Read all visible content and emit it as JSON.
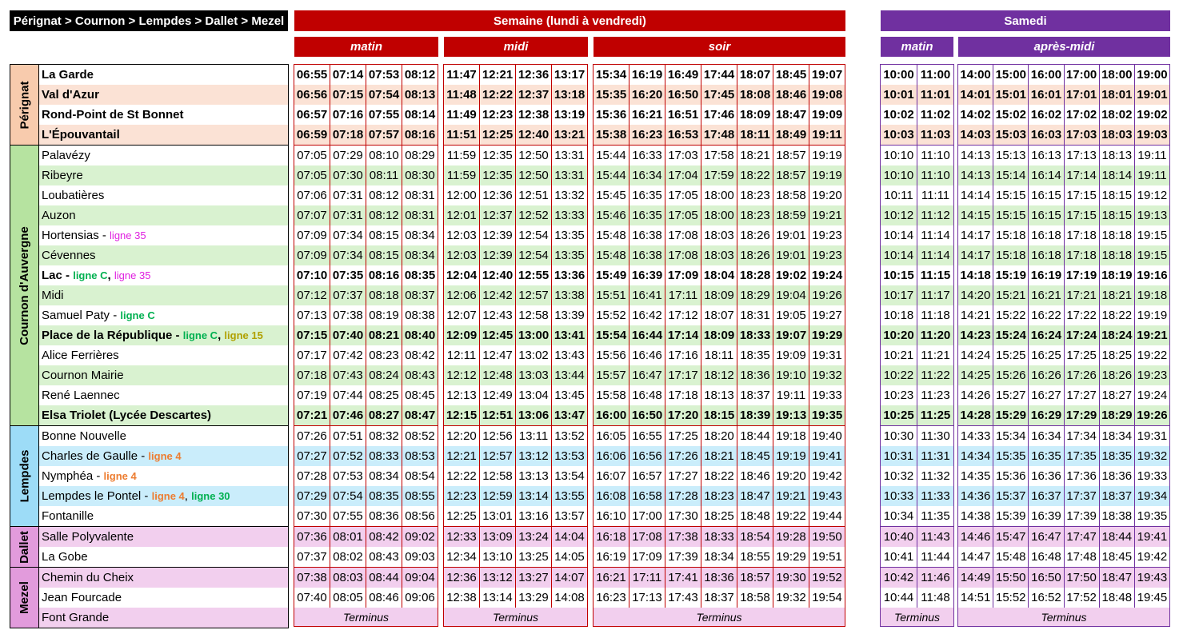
{
  "route_title": "Pérignat > Cournon > Lempdes > Dallet > Mezel",
  "colors": {
    "weekday": "#c00000",
    "saturday": "#7030a0",
    "perignat": "#f8cbad",
    "cournon": "#b6e3a0",
    "lempdes": "#9ddcf7",
    "dallet": "#e29bdc",
    "mezel": "#e29bdc",
    "ligne_C": "#00b050",
    "ligne_35": "#e020e0",
    "ligne_15": "#b0a000",
    "ligne_4": "#ed7d31",
    "ligne_30": "#00b050"
  },
  "headers": {
    "weekday": "Semaine (lundi à vendredi)",
    "saturday": "Samedi",
    "periods": {
      "w_matin": "matin",
      "w_midi": "midi",
      "w_soir": "soir",
      "s_matin": "matin",
      "s_apres": "après-midi"
    }
  },
  "terminus": "Terminus",
  "zones": [
    {
      "name": "Pérignat",
      "key": "per",
      "stops": [
        {
          "name": "La Garde",
          "bold": true,
          "lines": []
        },
        {
          "name": "Val d'Azur",
          "bold": true,
          "lines": []
        },
        {
          "name": "Rond-Point de St Bonnet",
          "bold": true,
          "lines": []
        },
        {
          "name": "L'Épouvantail",
          "bold": true,
          "lines": []
        }
      ]
    },
    {
      "name": "Cournon d'Auvergne",
      "key": "cou",
      "stops": [
        {
          "name": "Palavézy",
          "bold": false,
          "lines": []
        },
        {
          "name": "Ribeyre",
          "bold": false,
          "lines": []
        },
        {
          "name": "Loubatières",
          "bold": false,
          "lines": []
        },
        {
          "name": "Auzon",
          "bold": false,
          "lines": []
        },
        {
          "name": "Hortensias",
          "bold": false,
          "lines": [
            {
              "label": "ligne 35",
              "color": "#e020e0",
              "light": true
            }
          ]
        },
        {
          "name": "Cévennes",
          "bold": false,
          "lines": []
        },
        {
          "name": "Lac",
          "bold": true,
          "lines": [
            {
              "label": "ligne C",
              "color": "#00b050",
              "light": false
            },
            {
              "label": "ligne 35",
              "color": "#e020e0",
              "light": true
            }
          ]
        },
        {
          "name": "Midi",
          "bold": false,
          "lines": []
        },
        {
          "name": "Samuel Paty",
          "bold": false,
          "lines": [
            {
              "label": "ligne C",
              "color": "#00b050",
              "light": false
            }
          ]
        },
        {
          "name": "Place de la République",
          "bold": true,
          "lines": [
            {
              "label": "ligne C",
              "color": "#00b050",
              "light": false
            },
            {
              "label": "ligne 15",
              "color": "#b0a000",
              "light": false
            }
          ]
        },
        {
          "name": "Alice Ferrières",
          "bold": false,
          "lines": []
        },
        {
          "name": "Cournon Mairie",
          "bold": false,
          "lines": []
        },
        {
          "name": "René Laennec",
          "bold": false,
          "lines": []
        },
        {
          "name": "Elsa Triolet (Lycée Descartes)",
          "bold": true,
          "lines": []
        }
      ]
    },
    {
      "name": "Lempdes",
      "key": "lem",
      "stops": [
        {
          "name": "Bonne Nouvelle",
          "bold": false,
          "lines": []
        },
        {
          "name": "Charles de Gaulle",
          "bold": false,
          "lines": [
            {
              "label": "ligne 4",
              "color": "#ed7d31",
              "light": false
            }
          ]
        },
        {
          "name": "Nymphéa",
          "bold": false,
          "lines": [
            {
              "label": "ligne 4",
              "color": "#ed7d31",
              "light": false
            }
          ]
        },
        {
          "name": "Lempdes le Pontel",
          "bold": false,
          "lines": [
            {
              "label": "ligne 4",
              "color": "#ed7d31",
              "light": false
            },
            {
              "label": "ligne 30",
              "color": "#00b050",
              "light": false
            }
          ]
        },
        {
          "name": "Fontanille",
          "bold": false,
          "lines": []
        }
      ]
    },
    {
      "name": "Dallet",
      "key": "dal",
      "stops": [
        {
          "name": "Salle Polyvalente",
          "bold": false,
          "lines": []
        },
        {
          "name": "La Gobe",
          "bold": false,
          "lines": []
        }
      ]
    },
    {
      "name": "Mezel",
      "key": "dal",
      "stops": [
        {
          "name": "Chemin du Cheix",
          "bold": false,
          "lines": []
        },
        {
          "name": "Jean Fourcade",
          "bold": false,
          "lines": []
        },
        {
          "name": "Font Grande",
          "bold": false,
          "lines": [],
          "terminus_row": true
        }
      ]
    }
  ],
  "timetable": {
    "w_matin": [
      [
        "06:55",
        "07:14",
        "07:53",
        "08:12"
      ],
      [
        "06:56",
        "07:15",
        "07:54",
        "08:13"
      ],
      [
        "06:57",
        "07:16",
        "07:55",
        "08:14"
      ],
      [
        "06:59",
        "07:18",
        "07:57",
        "08:16"
      ],
      [
        "07:05",
        "07:29",
        "08:10",
        "08:29"
      ],
      [
        "07:05",
        "07:30",
        "08:11",
        "08:30"
      ],
      [
        "07:06",
        "07:31",
        "08:12",
        "08:31"
      ],
      [
        "07:07",
        "07:31",
        "08:12",
        "08:31"
      ],
      [
        "07:09",
        "07:34",
        "08:15",
        "08:34"
      ],
      [
        "07:09",
        "07:34",
        "08:15",
        "08:34"
      ],
      [
        "07:10",
        "07:35",
        "08:16",
        "08:35"
      ],
      [
        "07:12",
        "07:37",
        "08:18",
        "08:37"
      ],
      [
        "07:13",
        "07:38",
        "08:19",
        "08:38"
      ],
      [
        "07:15",
        "07:40",
        "08:21",
        "08:40"
      ],
      [
        "07:17",
        "07:42",
        "08:23",
        "08:42"
      ],
      [
        "07:18",
        "07:43",
        "08:24",
        "08:43"
      ],
      [
        "07:19",
        "07:44",
        "08:25",
        "08:45"
      ],
      [
        "07:21",
        "07:46",
        "08:27",
        "08:47"
      ],
      [
        "07:26",
        "07:51",
        "08:32",
        "08:52"
      ],
      [
        "07:27",
        "07:52",
        "08:33",
        "08:53"
      ],
      [
        "07:28",
        "07:53",
        "08:34",
        "08:54"
      ],
      [
        "07:29",
        "07:54",
        "08:35",
        "08:55"
      ],
      [
        "07:30",
        "07:55",
        "08:36",
        "08:56"
      ],
      [
        "07:36",
        "08:01",
        "08:42",
        "09:02"
      ],
      [
        "07:37",
        "08:02",
        "08:43",
        "09:03"
      ],
      [
        "07:38",
        "08:03",
        "08:44",
        "09:04"
      ],
      [
        "07:40",
        "08:05",
        "08:46",
        "09:06"
      ]
    ],
    "w_midi": [
      [
        "11:47",
        "12:21",
        "12:36",
        "13:17"
      ],
      [
        "11:48",
        "12:22",
        "12:37",
        "13:18"
      ],
      [
        "11:49",
        "12:23",
        "12:38",
        "13:19"
      ],
      [
        "11:51",
        "12:25",
        "12:40",
        "13:21"
      ],
      [
        "11:59",
        "12:35",
        "12:50",
        "13:31"
      ],
      [
        "11:59",
        "12:35",
        "12:50",
        "13:31"
      ],
      [
        "12:00",
        "12:36",
        "12:51",
        "13:32"
      ],
      [
        "12:01",
        "12:37",
        "12:52",
        "13:33"
      ],
      [
        "12:03",
        "12:39",
        "12:54",
        "13:35"
      ],
      [
        "12:03",
        "12:39",
        "12:54",
        "13:35"
      ],
      [
        "12:04",
        "12:40",
        "12:55",
        "13:36"
      ],
      [
        "12:06",
        "12:42",
        "12:57",
        "13:38"
      ],
      [
        "12:07",
        "12:43",
        "12:58",
        "13:39"
      ],
      [
        "12:09",
        "12:45",
        "13:00",
        "13:41"
      ],
      [
        "12:11",
        "12:47",
        "13:02",
        "13:43"
      ],
      [
        "12:12",
        "12:48",
        "13:03",
        "13:44"
      ],
      [
        "12:13",
        "12:49",
        "13:04",
        "13:45"
      ],
      [
        "12:15",
        "12:51",
        "13:06",
        "13:47"
      ],
      [
        "12:20",
        "12:56",
        "13:11",
        "13:52"
      ],
      [
        "12:21",
        "12:57",
        "13:12",
        "13:53"
      ],
      [
        "12:22",
        "12:58",
        "13:13",
        "13:54"
      ],
      [
        "12:23",
        "12:59",
        "13:14",
        "13:55"
      ],
      [
        "12:25",
        "13:01",
        "13:16",
        "13:57"
      ],
      [
        "12:33",
        "13:09",
        "13:24",
        "14:04"
      ],
      [
        "12:34",
        "13:10",
        "13:25",
        "14:05"
      ],
      [
        "12:36",
        "13:12",
        "13:27",
        "14:07"
      ],
      [
        "12:38",
        "13:14",
        "13:29",
        "14:08"
      ]
    ],
    "w_soir": [
      [
        "15:34",
        "16:19",
        "16:49",
        "17:44",
        "18:07",
        "18:45",
        "19:07"
      ],
      [
        "15:35",
        "16:20",
        "16:50",
        "17:45",
        "18:08",
        "18:46",
        "19:08"
      ],
      [
        "15:36",
        "16:21",
        "16:51",
        "17:46",
        "18:09",
        "18:47",
        "19:09"
      ],
      [
        "15:38",
        "16:23",
        "16:53",
        "17:48",
        "18:11",
        "18:49",
        "19:11"
      ],
      [
        "15:44",
        "16:33",
        "17:03",
        "17:58",
        "18:21",
        "18:57",
        "19:19"
      ],
      [
        "15:44",
        "16:34",
        "17:04",
        "17:59",
        "18:22",
        "18:57",
        "19:19"
      ],
      [
        "15:45",
        "16:35",
        "17:05",
        "18:00",
        "18:23",
        "18:58",
        "19:20"
      ],
      [
        "15:46",
        "16:35",
        "17:05",
        "18:00",
        "18:23",
        "18:59",
        "19:21"
      ],
      [
        "15:48",
        "16:38",
        "17:08",
        "18:03",
        "18:26",
        "19:01",
        "19:23"
      ],
      [
        "15:48",
        "16:38",
        "17:08",
        "18:03",
        "18:26",
        "19:01",
        "19:23"
      ],
      [
        "15:49",
        "16:39",
        "17:09",
        "18:04",
        "18:28",
        "19:02",
        "19:24"
      ],
      [
        "15:51",
        "16:41",
        "17:11",
        "18:09",
        "18:29",
        "19:04",
        "19:26"
      ],
      [
        "15:52",
        "16:42",
        "17:12",
        "18:07",
        "18:31",
        "19:05",
        "19:27"
      ],
      [
        "15:54",
        "16:44",
        "17:14",
        "18:09",
        "18:33",
        "19:07",
        "19:29"
      ],
      [
        "15:56",
        "16:46",
        "17:16",
        "18:11",
        "18:35",
        "19:09",
        "19:31"
      ],
      [
        "15:57",
        "16:47",
        "17:17",
        "18:12",
        "18:36",
        "19:10",
        "19:32"
      ],
      [
        "15:58",
        "16:48",
        "17:18",
        "18:13",
        "18:37",
        "19:11",
        "19:33"
      ],
      [
        "16:00",
        "16:50",
        "17:20",
        "18:15",
        "18:39",
        "19:13",
        "19:35"
      ],
      [
        "16:05",
        "16:55",
        "17:25",
        "18:20",
        "18:44",
        "19:18",
        "19:40"
      ],
      [
        "16:06",
        "16:56",
        "17:26",
        "18:21",
        "18:45",
        "19:19",
        "19:41"
      ],
      [
        "16:07",
        "16:57",
        "17:27",
        "18:22",
        "18:46",
        "19:20",
        "19:42"
      ],
      [
        "16:08",
        "16:58",
        "17:28",
        "18:23",
        "18:47",
        "19:21",
        "19:43"
      ],
      [
        "16:10",
        "17:00",
        "17:30",
        "18:25",
        "18:48",
        "19:22",
        "19:44"
      ],
      [
        "16:18",
        "17:08",
        "17:38",
        "18:33",
        "18:54",
        "19:28",
        "19:50"
      ],
      [
        "16:19",
        "17:09",
        "17:39",
        "18:34",
        "18:55",
        "19:29",
        "19:51"
      ],
      [
        "16:21",
        "17:11",
        "17:41",
        "18:36",
        "18:57",
        "19:30",
        "19:52"
      ],
      [
        "16:23",
        "17:13",
        "17:43",
        "18:37",
        "18:58",
        "19:32",
        "19:54"
      ]
    ],
    "s_matin": [
      [
        "10:00",
        "11:00"
      ],
      [
        "10:01",
        "11:01"
      ],
      [
        "10:02",
        "11:02"
      ],
      [
        "10:03",
        "11:03"
      ],
      [
        "10:10",
        "11:10"
      ],
      [
        "10:10",
        "11:10"
      ],
      [
        "10:11",
        "11:11"
      ],
      [
        "10:12",
        "11:12"
      ],
      [
        "10:14",
        "11:14"
      ],
      [
        "10:14",
        "11:14"
      ],
      [
        "10:15",
        "11:15"
      ],
      [
        "10:17",
        "11:17"
      ],
      [
        "10:18",
        "11:18"
      ],
      [
        "10:20",
        "11:20"
      ],
      [
        "10:21",
        "11:21"
      ],
      [
        "10:22",
        "11:22"
      ],
      [
        "10:23",
        "11:23"
      ],
      [
        "10:25",
        "11:25"
      ],
      [
        "10:30",
        "11:30"
      ],
      [
        "10:31",
        "11:31"
      ],
      [
        "10:32",
        "11:32"
      ],
      [
        "10:33",
        "11:33"
      ],
      [
        "10:34",
        "11:35"
      ],
      [
        "10:40",
        "11:43"
      ],
      [
        "10:41",
        "11:44"
      ],
      [
        "10:42",
        "11:46"
      ],
      [
        "10:44",
        "11:48"
      ]
    ],
    "s_apres": [
      [
        "14:00",
        "15:00",
        "16:00",
        "17:00",
        "18:00",
        "19:00"
      ],
      [
        "14:01",
        "15:01",
        "16:01",
        "17:01",
        "18:01",
        "19:01"
      ],
      [
        "14:02",
        "15:02",
        "16:02",
        "17:02",
        "18:02",
        "19:02"
      ],
      [
        "14:03",
        "15:03",
        "16:03",
        "17:03",
        "18:03",
        "19:03"
      ],
      [
        "14:13",
        "15:13",
        "16:13",
        "17:13",
        "18:13",
        "19:11"
      ],
      [
        "14:13",
        "15:14",
        "16:14",
        "17:14",
        "18:14",
        "19:11"
      ],
      [
        "14:14",
        "15:15",
        "16:15",
        "17:15",
        "18:15",
        "19:12"
      ],
      [
        "14:15",
        "15:15",
        "16:15",
        "17:15",
        "18:15",
        "19:13"
      ],
      [
        "14:17",
        "15:18",
        "16:18",
        "17:18",
        "18:18",
        "19:15"
      ],
      [
        "14:17",
        "15:18",
        "16:18",
        "17:18",
        "18:18",
        "19:15"
      ],
      [
        "14:18",
        "15:19",
        "16:19",
        "17:19",
        "18:19",
        "19:16"
      ],
      [
        "14:20",
        "15:21",
        "16:21",
        "17:21",
        "18:21",
        "19:18"
      ],
      [
        "14:21",
        "15:22",
        "16:22",
        "17:22",
        "18:22",
        "19:19"
      ],
      [
        "14:23",
        "15:24",
        "16:24",
        "17:24",
        "18:24",
        "19:21"
      ],
      [
        "14:24",
        "15:25",
        "16:25",
        "17:25",
        "18:25",
        "19:22"
      ],
      [
        "14:25",
        "15:26",
        "16:26",
        "17:26",
        "18:26",
        "19:23"
      ],
      [
        "14:26",
        "15:27",
        "16:27",
        "17:27",
        "18:27",
        "19:24"
      ],
      [
        "14:28",
        "15:29",
        "16:29",
        "17:29",
        "18:29",
        "19:26"
      ],
      [
        "14:33",
        "15:34",
        "16:34",
        "17:34",
        "18:34",
        "19:31"
      ],
      [
        "14:34",
        "15:35",
        "16:35",
        "17:35",
        "18:35",
        "19:32"
      ],
      [
        "14:35",
        "15:36",
        "16:36",
        "17:36",
        "18:36",
        "19:33"
      ],
      [
        "14:36",
        "15:37",
        "16:37",
        "17:37",
        "18:37",
        "19:34"
      ],
      [
        "14:38",
        "15:39",
        "16:39",
        "17:39",
        "18:38",
        "19:35"
      ],
      [
        "14:46",
        "15:47",
        "16:47",
        "17:47",
        "18:44",
        "19:41"
      ],
      [
        "14:47",
        "15:48",
        "16:48",
        "17:48",
        "18:45",
        "19:42"
      ],
      [
        "14:49",
        "15:50",
        "16:50",
        "17:50",
        "18:47",
        "19:43"
      ],
      [
        "14:51",
        "15:52",
        "16:52",
        "17:52",
        "18:48",
        "19:45"
      ]
    ]
  }
}
